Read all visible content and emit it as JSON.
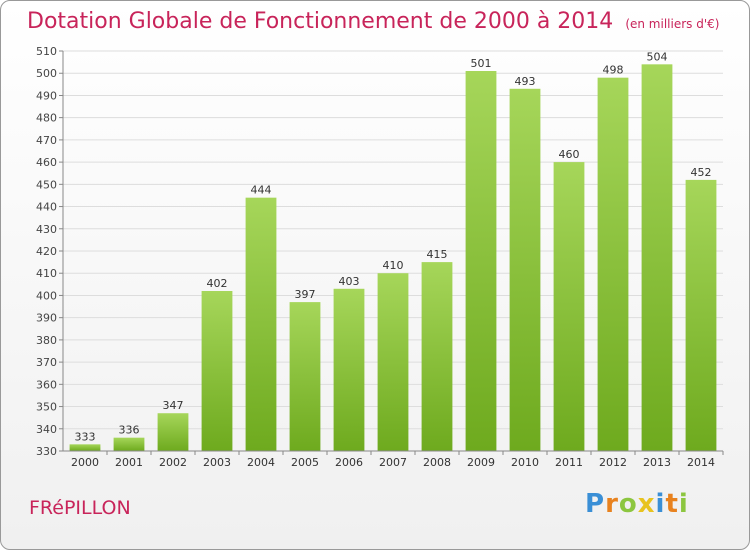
{
  "title": "Dotation Globale de Fonctionnement de 2000 à 2014",
  "subtitle": "(en milliers d'€)",
  "town": "FRéPILLON",
  "logo": {
    "text": "Proxiti",
    "letter_colors": [
      "#3a8fd6",
      "#e8821e",
      "#8cc63f",
      "#e8c31e",
      "#3a8fd6",
      "#e8821e",
      "#8cc63f"
    ]
  },
  "colors": {
    "title": "#c8245a",
    "bar_light": "#a6d65a",
    "bar_dark": "#6eaa1e"
  },
  "chart_data": {
    "type": "bar",
    "title": "Dotation Globale de Fonctionnement de 2000 à 2014",
    "subtitle": "(en milliers d'€)",
    "categories": [
      "2000",
      "2001",
      "2002",
      "2003",
      "2004",
      "2005",
      "2006",
      "2007",
      "2008",
      "2009",
      "2010",
      "2011",
      "2012",
      "2013",
      "2014"
    ],
    "values": [
      333,
      336,
      347,
      402,
      444,
      397,
      403,
      410,
      415,
      501,
      493,
      460,
      498,
      504,
      452
    ],
    "ylim": [
      330,
      510
    ],
    "yticks": [
      330,
      340,
      350,
      360,
      370,
      380,
      390,
      400,
      410,
      420,
      430,
      440,
      450,
      460,
      470,
      480,
      490,
      500,
      510
    ],
    "grid": true,
    "data_labels": true
  }
}
